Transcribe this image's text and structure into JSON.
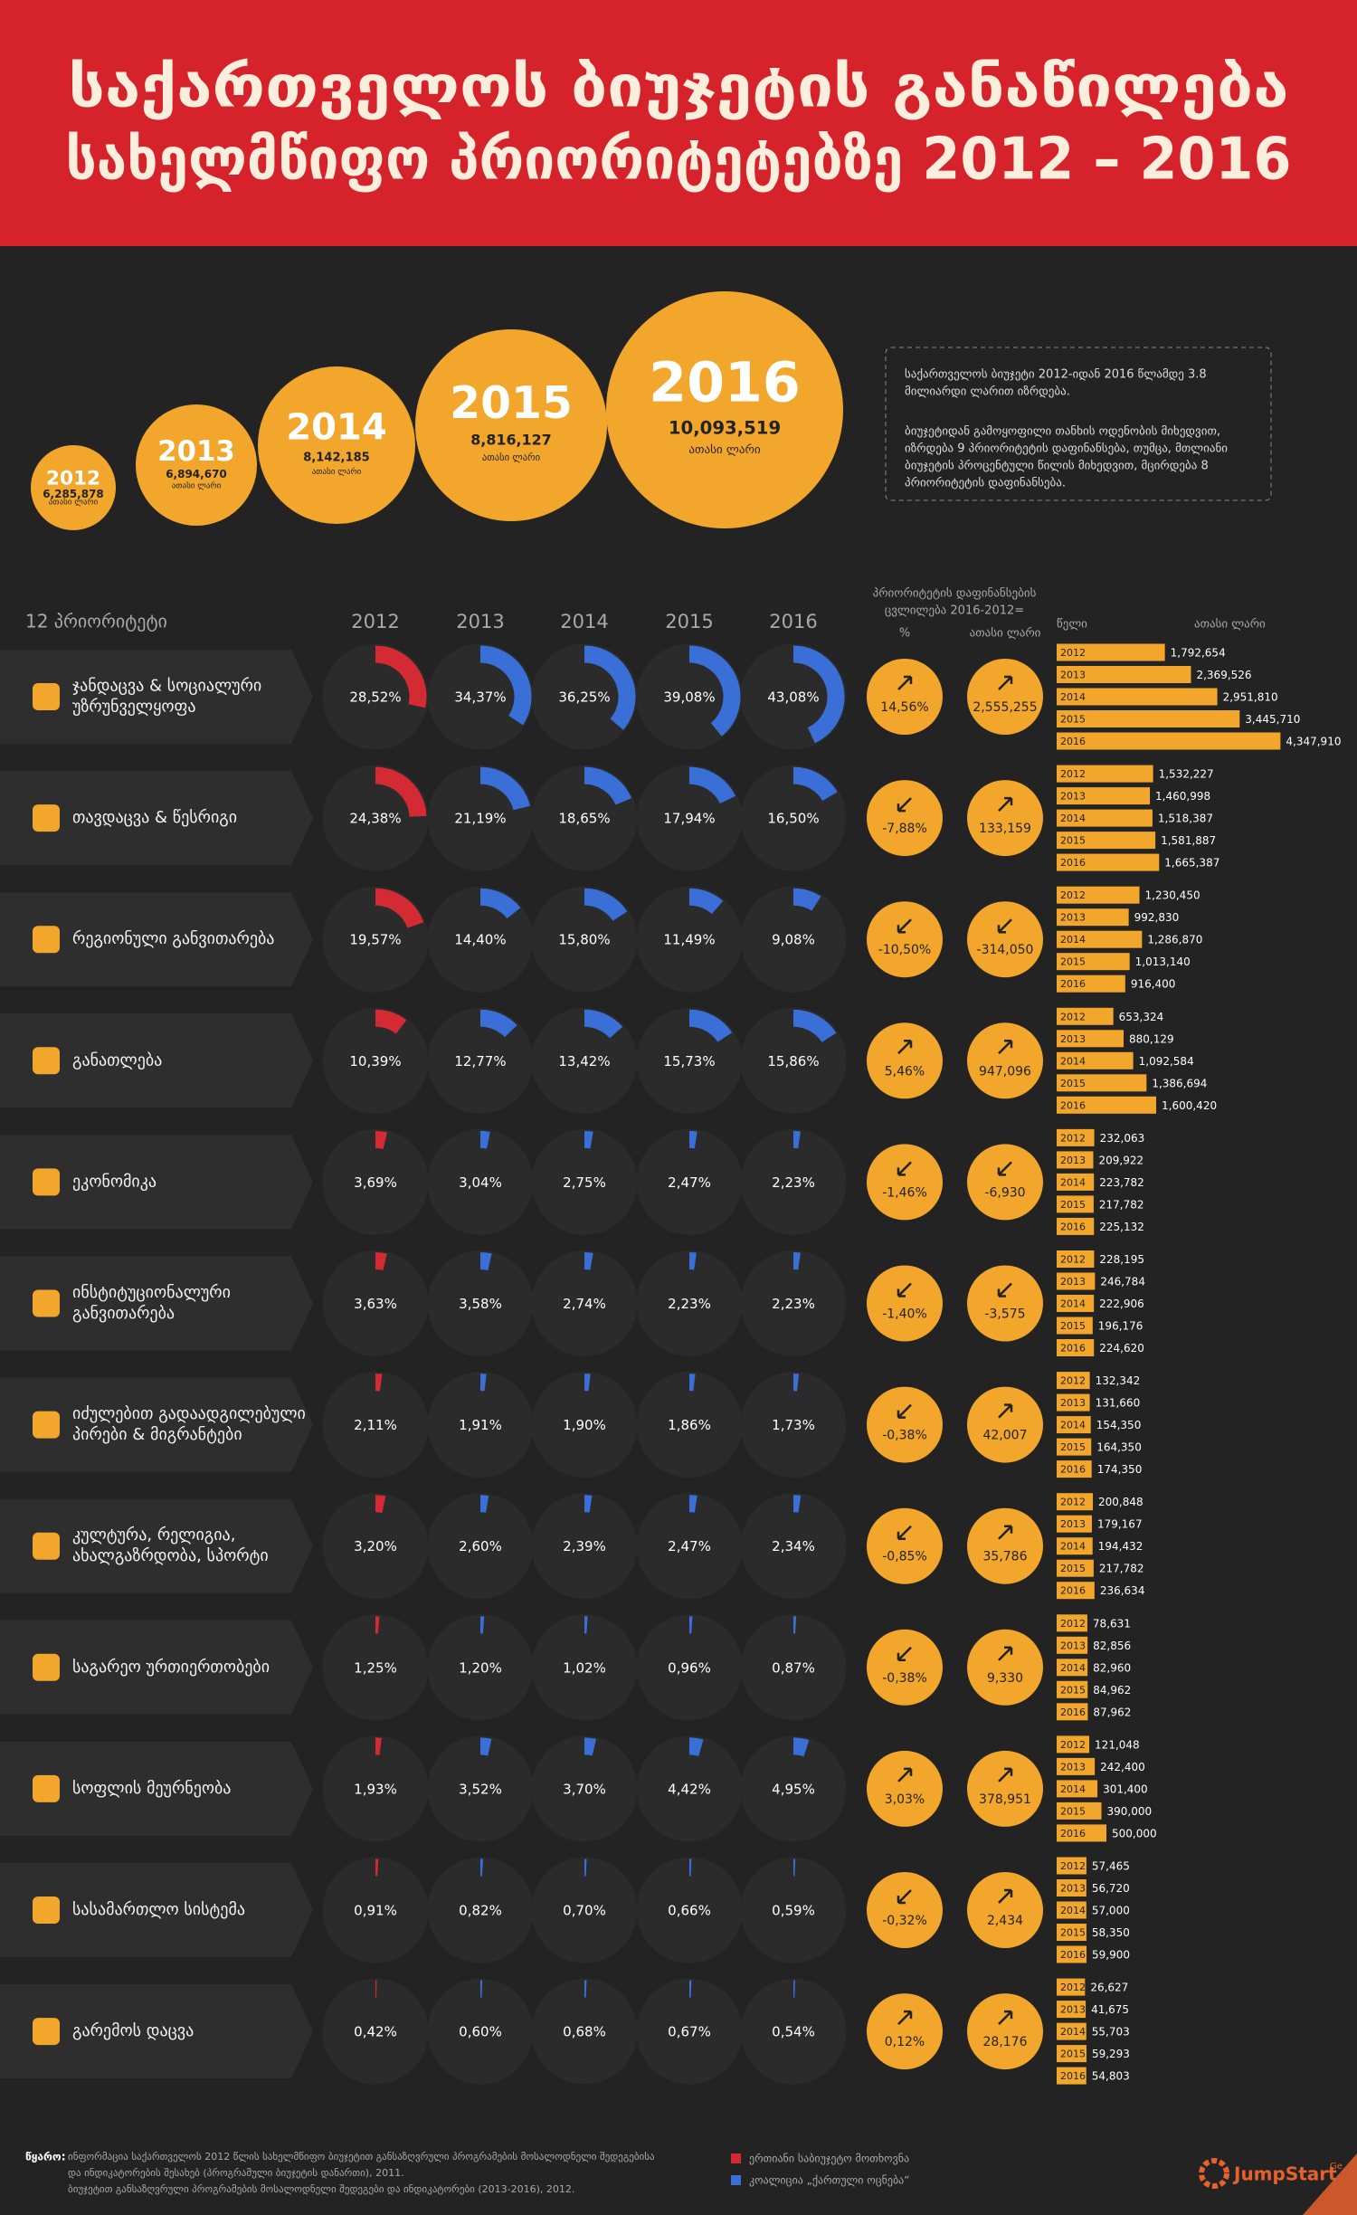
{
  "title": [
    "საქართველოს ბიუჯეტის განაწილება",
    "სახელმწიფო პრიორიტეტებზე 2012 – 2016"
  ],
  "years": [
    "2012",
    "2013",
    "2014",
    "2015",
    "2016"
  ],
  "totals": {
    "unit": "ათასი ლარი",
    "values": [
      6285878,
      6894670,
      8142185,
      8816127,
      10093519
    ],
    "value_labels": [
      "6,285,878",
      "6,894,670",
      "8,142,185",
      "8,816,127",
      "10,093,519"
    ]
  },
  "info": [
    [
      "საქართველოს ბიუჯეტი 2012-იდან 2016 წლამდე 3.8",
      "მილიარდი  ლარით იზრდება."
    ],
    [
      "ბიუჯეტიდან გამოყოფილი თანხის ოდენობის მიხედვით,",
      "იზრდება 9 პრიორიტეტის დაფინანსება, თუმცა, მთლიანი",
      "ბიუჯეტის პროცენტული წილის მიხედვით, მცირდება 8",
      "პრიორიტეტის დაფინანსება."
    ]
  ],
  "table": {
    "header": "12 პრიორიტეტი",
    "change_header": [
      "პრიორიტეტის დაფინანსების",
      "ცვლილება 2016-2012="
    ],
    "change_columns": [
      "%",
      "ათასი ლარი"
    ],
    "bar_headers": [
      "წელი",
      "ათასი ლარი"
    ],
    "rows": [
      {
        "name": [
          "ჯანდაცვა & სოციალური",
          "უზრუნველყოფა"
        ],
        "shares": [
          28.52,
          34.37,
          36.25,
          39.08,
          43.08
        ],
        "share_labels": [
          "28,52%",
          "34,37%",
          "36,25%",
          "39,08%",
          "43,08%"
        ],
        "change_pct": 14.56,
        "change_pct_label": "14,56%",
        "change_amount": 2555255,
        "change_amount_label": "2,555,255",
        "amounts": [
          1792654,
          2369526,
          2951810,
          3445710,
          4347910
        ],
        "amount_labels": [
          "1,792,654",
          "2,369,526",
          "2,951,810",
          "3,445,710",
          "4,347,910"
        ]
      },
      {
        "name": [
          "თავდაცვა & წესრიგი"
        ],
        "shares": [
          24.38,
          21.19,
          18.65,
          17.94,
          16.5
        ],
        "share_labels": [
          "24,38%",
          "21,19%",
          "18,65%",
          "17,94%",
          "16,50%"
        ],
        "change_pct": -7.88,
        "change_pct_label": "-7,88%",
        "change_amount": 133159,
        "change_amount_label": "133,159",
        "amounts": [
          1532227,
          1460998,
          1518387,
          1581887,
          1665387
        ],
        "amount_labels": [
          "1,532,227",
          "1,460,998",
          "1,518,387",
          "1,581,887",
          "1,665,387"
        ]
      },
      {
        "name": [
          "რეგიონული განვითარება"
        ],
        "shares": [
          19.57,
          14.4,
          15.8,
          11.49,
          9.08
        ],
        "share_labels": [
          "19,57%",
          "14,40%",
          "15,80%",
          "11,49%",
          "9,08%"
        ],
        "change_pct": -10.5,
        "change_pct_label": "-10,50%",
        "change_amount": -314050,
        "change_amount_label": "-314,050",
        "amounts": [
          1230450,
          992830,
          1286870,
          1013140,
          916400
        ],
        "amount_labels": [
          "1,230,450",
          "992,830",
          "1,286,870",
          "1,013,140",
          "916,400"
        ]
      },
      {
        "name": [
          "განათლება"
        ],
        "shares": [
          10.39,
          12.77,
          13.42,
          15.73,
          15.86
        ],
        "share_labels": [
          "10,39%",
          "12,77%",
          "13,42%",
          "15,73%",
          "15,86%"
        ],
        "change_pct": 5.46,
        "change_pct_label": "5,46%",
        "change_amount": 947096,
        "change_amount_label": "947,096",
        "amounts": [
          653324,
          880129,
          1092584,
          1386694,
          1600420
        ],
        "amount_labels": [
          "653,324",
          "880,129",
          "1,092,584",
          "1,386,694",
          "1,600,420"
        ]
      },
      {
        "name": [
          "ეკონომიკა"
        ],
        "shares": [
          3.69,
          3.04,
          2.75,
          2.47,
          2.23
        ],
        "share_labels": [
          "3,69%",
          "3,04%",
          "2,75%",
          "2,47%",
          "2,23%"
        ],
        "change_pct": -1.46,
        "change_pct_label": "-1,46%",
        "change_amount": -6930,
        "change_amount_label": "-6,930",
        "amounts": [
          232063,
          209922,
          223782,
          217782,
          225132
        ],
        "amount_labels": [
          "232,063",
          "209,922",
          "223,782",
          "217,782",
          "225,132"
        ]
      },
      {
        "name": [
          "ინსტიტუციონალური",
          "განვითარება"
        ],
        "shares": [
          3.63,
          3.58,
          2.74,
          2.23,
          2.23
        ],
        "share_labels": [
          "3,63%",
          "3,58%",
          "2,74%",
          "2,23%",
          "2,23%"
        ],
        "change_pct": -1.4,
        "change_pct_label": "-1,40%",
        "change_amount": -3575,
        "change_amount_label": "-3,575",
        "amounts": [
          228195,
          246784,
          222906,
          196176,
          224620
        ],
        "amount_labels": [
          "228,195",
          "246,784",
          "222,906",
          "196,176",
          "224,620"
        ]
      },
      {
        "name": [
          "იძულებით გადაადგილებული",
          "პირები & მიგრანტები"
        ],
        "shares": [
          2.11,
          1.91,
          1.9,
          1.86,
          1.73
        ],
        "share_labels": [
          "2,11%",
          "1,91%",
          "1,90%",
          "1,86%",
          "1,73%"
        ],
        "change_pct": -0.38,
        "change_pct_label": "-0,38%",
        "change_amount": 42007,
        "change_amount_label": "42,007",
        "amounts": [
          132342,
          131660,
          154350,
          164350,
          174350
        ],
        "amount_labels": [
          "132,342",
          "131,660",
          "154,350",
          "164,350",
          "174,350"
        ]
      },
      {
        "name": [
          "კულტურა, რელიგია,",
          "ახალგაზრდობა, სპორტი"
        ],
        "shares": [
          3.2,
          2.6,
          2.39,
          2.47,
          2.34
        ],
        "share_labels": [
          "3,20%",
          "2,60%",
          "2,39%",
          "2,47%",
          "2,34%"
        ],
        "change_pct": -0.85,
        "change_pct_label": "-0,85%",
        "change_amount": 35786,
        "change_amount_label": "35,786",
        "amounts": [
          200848,
          179167,
          194432,
          217782,
          236634
        ],
        "amount_labels": [
          "200,848",
          "179,167",
          "194,432",
          "217,782",
          "236,634"
        ]
      },
      {
        "name": [
          "საგარეო ურთიერთობები"
        ],
        "shares": [
          1.25,
          1.2,
          1.02,
          0.96,
          0.87
        ],
        "share_labels": [
          "1,25%",
          "1,20%",
          "1,02%",
          "0,96%",
          "0,87%"
        ],
        "change_pct": -0.38,
        "change_pct_label": "-0,38%",
        "change_amount": 9330,
        "change_amount_label": "9,330",
        "amounts": [
          78631,
          82856,
          82960,
          84962,
          87962
        ],
        "amount_labels": [
          "78,631",
          "82,856",
          "82,960",
          "84,962",
          "87,962"
        ]
      },
      {
        "name": [
          "სოფლის მეურნეობა"
        ],
        "shares": [
          1.93,
          3.52,
          3.7,
          4.42,
          4.95
        ],
        "share_labels": [
          "1,93%",
          "3,52%",
          "3,70%",
          "4,42%",
          "4,95%"
        ],
        "change_pct": 3.03,
        "change_pct_label": "3,03%",
        "change_amount": 378951,
        "change_amount_label": "378,951",
        "amounts": [
          121048,
          242400,
          301400,
          390000,
          500000
        ],
        "amount_labels": [
          "121,048",
          "242,400",
          "301,400",
          "390,000",
          "500,000"
        ]
      },
      {
        "name": [
          "სასამართლო სისტემა"
        ],
        "shares": [
          0.91,
          0.82,
          0.7,
          0.66,
          0.59
        ],
        "share_labels": [
          "0,91%",
          "0,82%",
          "0,70%",
          "0,66%",
          "0,59%"
        ],
        "change_pct": -0.32,
        "change_pct_label": "-0,32%",
        "change_amount": 2434,
        "change_amount_label": "2,434",
        "amounts": [
          57465,
          56720,
          57000,
          58350,
          59900
        ],
        "amount_labels": [
          "57,465",
          "56,720",
          "57,000",
          "58,350",
          "59,900"
        ]
      },
      {
        "name": [
          "გარემოს დაცვა"
        ],
        "shares": [
          0.42,
          0.6,
          0.68,
          0.67,
          0.54
        ],
        "share_labels": [
          "0,42%",
          "0,60%",
          "0,68%",
          "0,67%",
          "0,54%"
        ],
        "change_pct": 0.12,
        "change_pct_label": "0,12%",
        "change_amount": 28176,
        "change_amount_label": "28,176",
        "amounts": [
          26627,
          41675,
          55703,
          59293,
          54803
        ],
        "amount_labels": [
          "26,627",
          "41,675",
          "55,703",
          "59,293",
          "54,803"
        ]
      }
    ]
  },
  "legend": [
    {
      "label": "ერთიანი საბიუჯეტო მოთხოვნა",
      "color": "#d42a34"
    },
    {
      "label": "კოალიცია „ქართული ოცნება“",
      "color": "#3a6fd8"
    }
  ],
  "source": {
    "label": "წყარო:",
    "lines": [
      "ინფორმაცია საქართველოს 2012 წლის სახელმწიფო ბიუჯეტით განსაზღვრული პროგრამების მოსალოდნელი შედეგებისა",
      "და ინდიკატორების შესახებ (პროგრამული ბიუჯეტის დანართი), 2011.",
      "ბიუჯეტით განსაზღვრული პროგრამების მოსალოდნელი შედეგები და ინდიკატორები (2013-2016), 2012."
    ]
  },
  "logo": {
    "name": "JumpStart",
    "suffix": "Ge"
  }
}
